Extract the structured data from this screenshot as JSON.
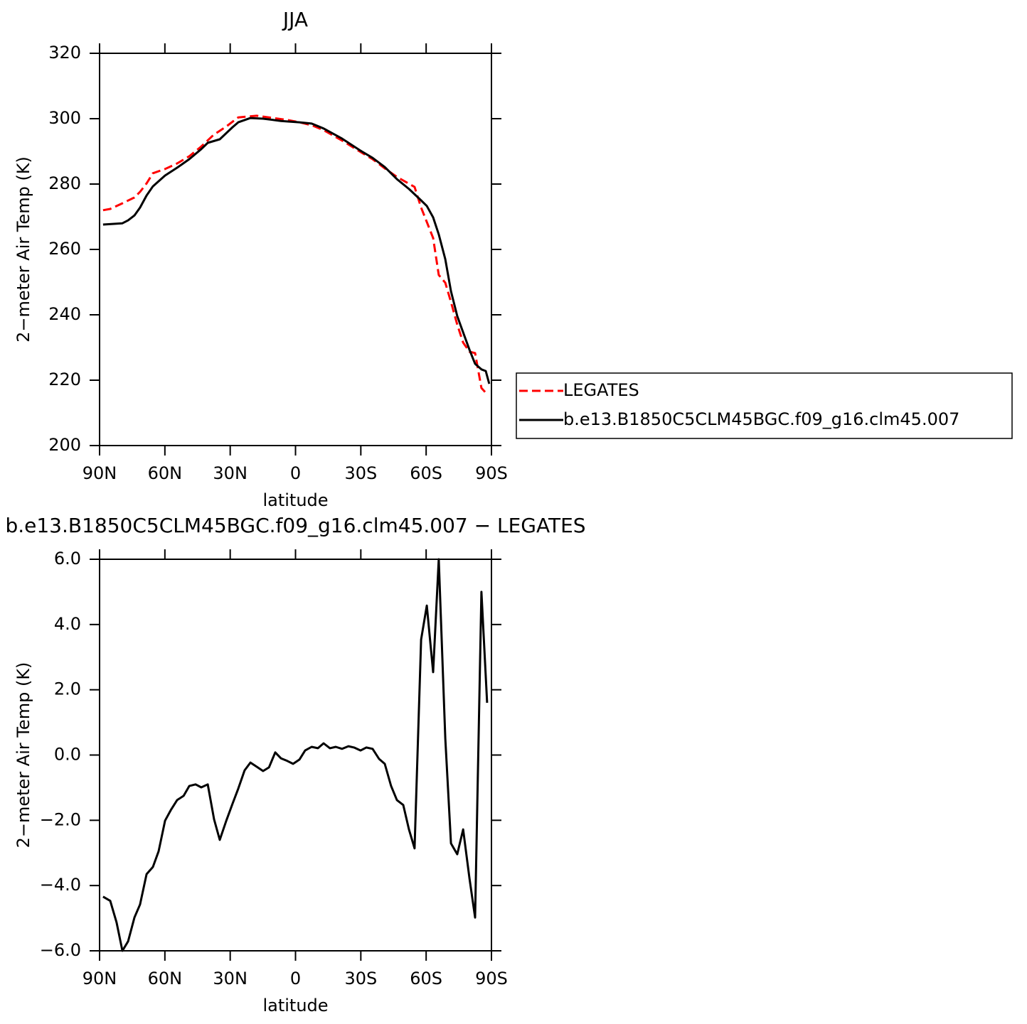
{
  "chart_data": [
    {
      "type": "line",
      "title": "JJA",
      "xlabel": "latitude",
      "ylabel": "2−meter Air Temp (K)",
      "xlim": [
        90,
        -90
      ],
      "xticks": [
        {
          "value": 90,
          "label": "90N"
        },
        {
          "value": 60,
          "label": "60N"
        },
        {
          "value": 30,
          "label": "30N"
        },
        0,
        {
          "value": -30,
          "label": "30S"
        },
        {
          "value": -60,
          "label": "60S"
        },
        {
          "value": -90,
          "label": "90S"
        }
      ],
      "ylim": [
        200,
        320
      ],
      "yticks": [
        200,
        220,
        240,
        260,
        280,
        300,
        320
      ],
      "legend": "right",
      "series": [
        {
          "name": "LEGATES",
          "color": "#ff0000",
          "dash": true,
          "x": [
            88.4,
            85.1,
            79.5,
            74.0,
            71.4,
            68.4,
            65.5,
            59.9,
            54.4,
            48.8,
            43.3,
            37.7,
            31.8,
            26.3,
            17.8,
            12.2,
            3.8,
            -1.8,
            -7.4,
            -12.9,
            -21.4,
            -29.9,
            -35.4,
            -41.0,
            -46.6,
            -54.7,
            -57.7,
            -63.2,
            -65.8,
            -68.8,
            -71.4,
            -74.3,
            -77.0,
            -79.9,
            -82.5,
            -85.4,
            -88.0
          ],
          "values": [
            272.0,
            272.4,
            274.1,
            275.9,
            277.6,
            280.2,
            283.3,
            284.6,
            286.3,
            288.5,
            291.5,
            295.0,
            297.6,
            300.4,
            300.9,
            300.4,
            299.6,
            298.9,
            298.0,
            296.5,
            293.3,
            289.8,
            287.6,
            284.8,
            282.2,
            279.1,
            272.8,
            263.5,
            252.2,
            249.8,
            243.9,
            237.0,
            231.5,
            228.7,
            228.3,
            217.6,
            215.7
          ]
        },
        {
          "name": "b.e13.B1850C5CLM45BGC.f09_g16.clm45.007",
          "color": "#000000",
          "dash": false,
          "x": [
            88.4,
            79.5,
            76.9,
            74.0,
            71.4,
            68.4,
            65.5,
            59.9,
            54.4,
            48.8,
            43.3,
            40.3,
            34.8,
            28.9,
            26.3,
            20.7,
            14.9,
            6.7,
            -1.8,
            -7.4,
            -12.9,
            -21.4,
            -29.9,
            -35.4,
            -41.0,
            -46.6,
            -52.1,
            -57.7,
            -60.3,
            -63.2,
            -65.8,
            -68.8,
            -71.4,
            -74.3,
            -77.0,
            -79.9,
            -82.5,
            -85.4,
            -87.4,
            -89.0
          ],
          "values": [
            267.6,
            268.0,
            268.9,
            270.4,
            272.8,
            276.5,
            279.3,
            282.6,
            285.0,
            287.6,
            290.7,
            292.6,
            293.7,
            297.4,
            298.9,
            300.2,
            300.0,
            299.3,
            298.9,
            298.5,
            297.0,
            293.9,
            290.2,
            288.0,
            285.2,
            281.5,
            278.5,
            275.0,
            273.3,
            269.8,
            264.6,
            257.0,
            247.2,
            239.6,
            234.6,
            229.3,
            225.0,
            223.3,
            222.8,
            218.9
          ]
        }
      ]
    },
    {
      "type": "line",
      "title": "b.e13.B1850C5CLM45BGC.f09_g16.clm45.007 − LEGATES",
      "xlabel": "latitude",
      "ylabel": "2−meter Air Temp (K)",
      "xlim": [
        90,
        -90
      ],
      "xticks": [
        {
          "value": 90,
          "label": "90N"
        },
        {
          "value": 60,
          "label": "60N"
        },
        {
          "value": 30,
          "label": "30N"
        },
        0,
        {
          "value": -30,
          "label": "30S"
        },
        {
          "value": -60,
          "label": "60S"
        },
        {
          "value": -90,
          "label": "90S"
        }
      ],
      "ylim": [
        -6,
        6
      ],
      "yticks": [
        {
          "value": -6,
          "label": "−6.0"
        },
        {
          "value": -4,
          "label": "−4.0"
        },
        {
          "value": -2,
          "label": "−2.0"
        },
        {
          "value": 0,
          "label": "0.0"
        },
        {
          "value": 2,
          "label": "2.0"
        },
        {
          "value": 4,
          "label": "4.0"
        },
        {
          "value": 6,
          "label": "6.0"
        }
      ],
      "series": [
        {
          "color": "#000000",
          "dash": false,
          "x": [
            88.4,
            85.1,
            82.2,
            79.5,
            76.9,
            74.0,
            71.4,
            68.4,
            65.5,
            62.9,
            59.9,
            57.3,
            54.4,
            51.4,
            48.8,
            45.9,
            43.3,
            40.3,
            37.4,
            34.8,
            31.8,
            28.9,
            26.3,
            23.4,
            20.7,
            17.8,
            14.9,
            12.2,
            9.3,
            6.7,
            3.8,
            1.1,
            -1.8,
            -4.4,
            -7.4,
            -10.3,
            -12.9,
            -15.8,
            -18.5,
            -21.4,
            -24.3,
            -26.9,
            -29.9,
            -32.5,
            -35.4,
            -38.4,
            -41.0,
            -43.9,
            -46.6,
            -49.5,
            -52.1,
            -54.7,
            -57.7,
            -60.3,
            -63.2,
            -65.8,
            -68.8,
            -71.4,
            -74.3,
            -77.0,
            -79.9,
            -82.5,
            -85.4,
            -88.0
          ],
          "values": [
            -4.34,
            -4.47,
            -5.13,
            -6.0,
            -5.71,
            -4.98,
            -4.58,
            -3.65,
            -3.43,
            -2.95,
            -2.01,
            -1.69,
            -1.38,
            -1.25,
            -0.95,
            -0.9,
            -0.99,
            -0.9,
            -1.97,
            -2.6,
            -2.01,
            -1.49,
            -1.03,
            -0.47,
            -0.23,
            -0.36,
            -0.49,
            -0.38,
            0.08,
            -0.1,
            -0.18,
            -0.27,
            -0.14,
            0.14,
            0.25,
            0.21,
            0.36,
            0.21,
            0.25,
            0.19,
            0.27,
            0.23,
            0.14,
            0.23,
            0.19,
            -0.12,
            -0.27,
            -0.95,
            -1.38,
            -1.53,
            -2.28,
            -2.86,
            3.54,
            4.58,
            2.54,
            6.0,
            0.51,
            -2.71,
            -3.04,
            -2.28,
            -3.78,
            -4.98,
            5.0,
            1.6
          ]
        }
      ]
    }
  ]
}
